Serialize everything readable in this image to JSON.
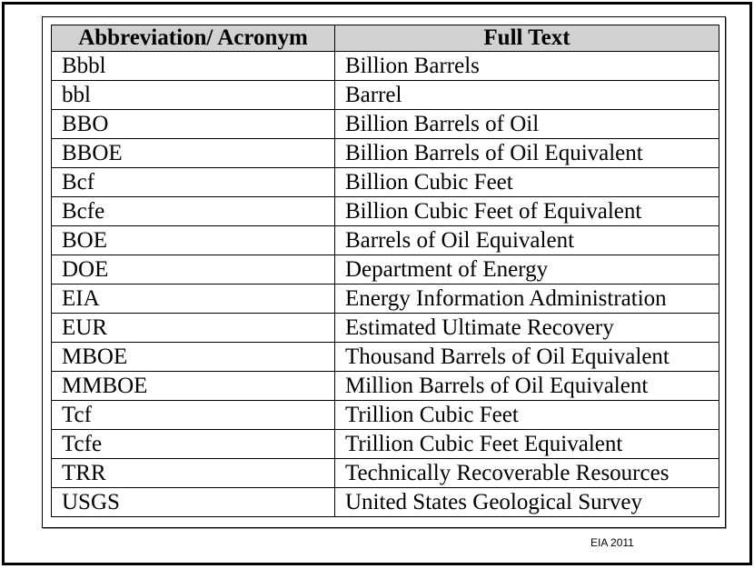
{
  "table": {
    "headers": {
      "abbreviation": "Abbreviation/ Acronym",
      "full_text": "Full Text"
    },
    "rows": [
      {
        "abbr": "Bbbl",
        "full": "Billion Barrels"
      },
      {
        "abbr": "bbl",
        "full": "Barrel"
      },
      {
        "abbr": "BBO",
        "full": "Billion Barrels of Oil"
      },
      {
        "abbr": "BBOE",
        "full": "Billion Barrels of Oil Equivalent"
      },
      {
        "abbr": "Bcf",
        "full": "Billion Cubic Feet"
      },
      {
        "abbr": "Bcfe",
        "full": "Billion Cubic Feet of Equivalent"
      },
      {
        "abbr": "BOE",
        "full": "Barrels of Oil Equivalent"
      },
      {
        "abbr": "DOE",
        "full": "Department of Energy"
      },
      {
        "abbr": "EIA",
        "full": "Energy Information Administration"
      },
      {
        "abbr": "EUR",
        "full": "Estimated Ultimate Recovery"
      },
      {
        "abbr": "MBOE",
        "full": "Thousand Barrels of Oil Equivalent"
      },
      {
        "abbr": "MMBOE",
        "full": "Million Barrels of Oil Equivalent"
      },
      {
        "abbr": "Tcf",
        "full": "Trillion Cubic Feet"
      },
      {
        "abbr": "Tcfe",
        "full": "Trillion Cubic Feet Equivalent"
      },
      {
        "abbr": "TRR",
        "full": "Technically Recoverable Resources"
      },
      {
        "abbr": "USGS",
        "full": "United States Geological Survey"
      }
    ]
  },
  "source": "EIA 2011",
  "colors": {
    "header_background": "#d2d2d2",
    "border": "#000000"
  }
}
